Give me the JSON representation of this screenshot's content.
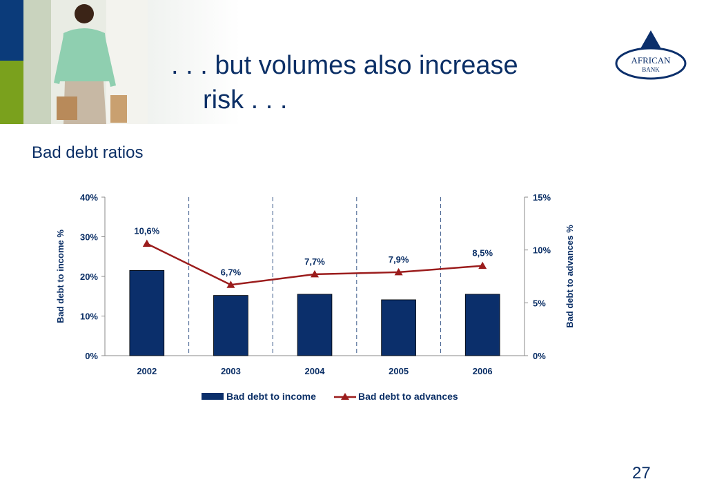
{
  "slide": {
    "title_line1": ". . . but volumes also increase",
    "title_line2": "risk . . .",
    "subtitle": "Bad debt ratios",
    "logo_text_line1": "AFRICAN",
    "logo_text_line2": "BANK",
    "page_number": "27"
  },
  "colors": {
    "bar": "#0b2f6b",
    "line": "#9b1c1c",
    "title": "#0b2f66",
    "axis_label": "#0b2f66"
  },
  "chart_data": {
    "type": "bar",
    "categories": [
      "2002",
      "2003",
      "2004",
      "2005",
      "2006"
    ],
    "series": [
      {
        "name": "Bad debt to income",
        "type": "bar",
        "axis": "left",
        "values": [
          21.5,
          15.2,
          15.5,
          14.1,
          15.5
        ]
      },
      {
        "name": "Bad debt to advances",
        "type": "line",
        "axis": "right",
        "values": [
          10.6,
          6.7,
          7.7,
          7.9,
          8.5
        ],
        "labels": [
          "10,6%",
          "6,7%",
          "7,7%",
          "7,9%",
          "8,5%"
        ]
      }
    ],
    "ylabel": "Bad debt to income %",
    "ylabel_right": "Bad debt to advances %",
    "ylim": [
      0,
      40
    ],
    "ylim_right": [
      0,
      15
    ],
    "y_ticks": [
      "0%",
      "10%",
      "20%",
      "30%",
      "40%"
    ],
    "y_ticks_right": [
      "0%",
      "5%",
      "10%",
      "15%"
    ],
    "grid": "vertical-dashed",
    "legend": "bottom"
  }
}
